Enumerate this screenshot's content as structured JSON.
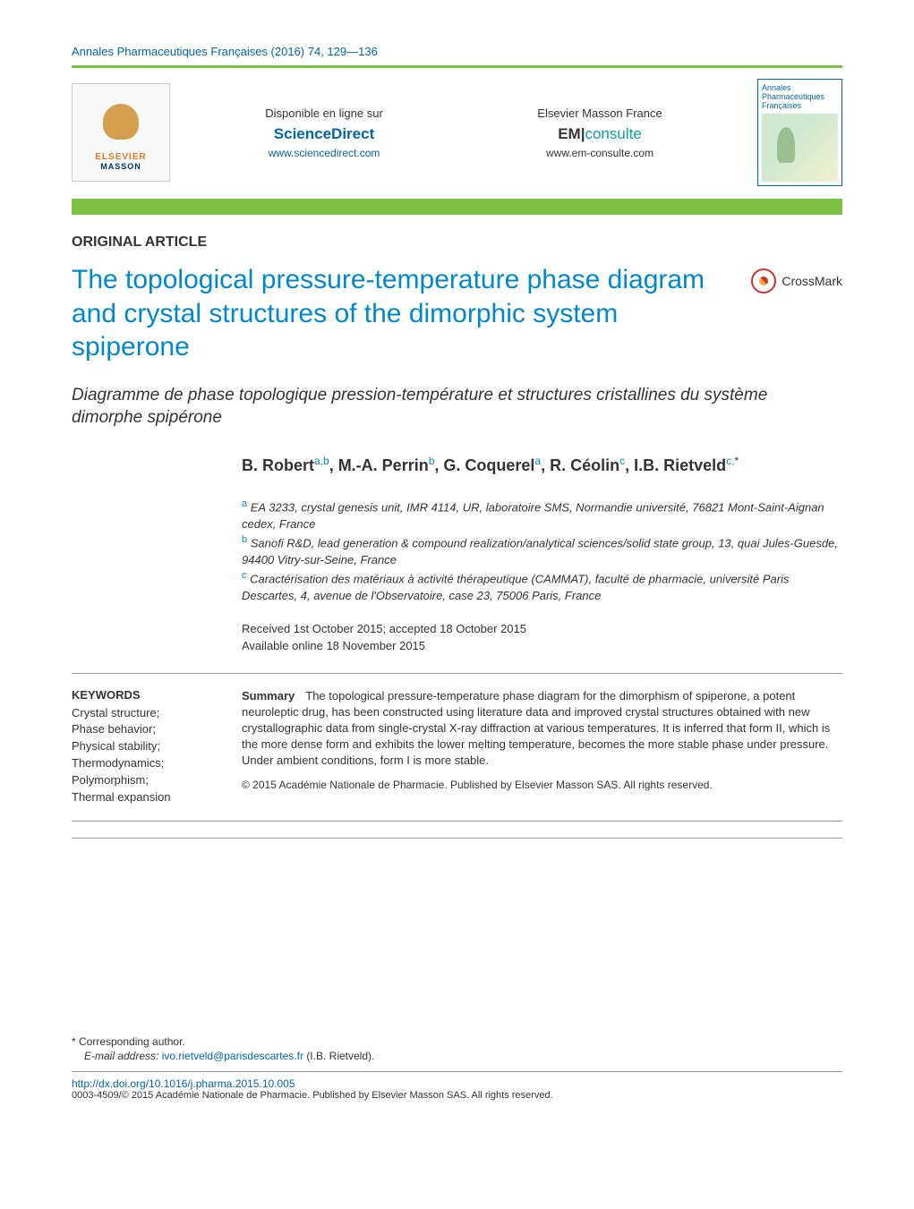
{
  "journal_ref": "Annales Pharmaceutiques Françaises (2016) 74, 129—136",
  "header": {
    "elsevier_logo_main": "ELSEVIER",
    "elsevier_logo_sub": "MASSON",
    "left_block": {
      "label": "Disponible en ligne sur",
      "brand": "ScienceDirect",
      "url": "www.sciencedirect.com"
    },
    "right_block": {
      "label": "Elsevier Masson France",
      "brand_pre": "EM",
      "brand_post": "consulte",
      "url": "www.em-consulte.com"
    },
    "cover": {
      "line1": "Annales",
      "line2": "Pharmaceutiques",
      "line3": "Françaises"
    }
  },
  "article_type": "ORIGINAL ARTICLE",
  "title": "The topological pressure-temperature phase diagram and crystal structures of the dimorphic system spiperone",
  "crossmark_label": "CrossMark",
  "subtitle": "Diagramme de phase topologique pression-température et structures cristallines du système dimorphe spipérone",
  "authors_html": "B. Robert<sup>a,b</sup>, M.-A. Perrin<sup>b</sup>, G. Coquerel<sup>a</sup>, R. Céolin<sup>c</sup>, I.B. Rietveld<sup>c,</sup><sup class='star'>*</sup>",
  "affiliations": [
    {
      "tag": "a",
      "text": "EA 3233, crystal genesis unit, IMR 4114, UR, laboratoire SMS, Normandie université, 76821 Mont-Saint-Aignan cedex, France"
    },
    {
      "tag": "b",
      "text": "Sanofi R&D, lead generation & compound realization/analytical sciences/solid state group, 13, quai Jules-Guesde, 94400 Vitry-sur-Seine, France"
    },
    {
      "tag": "c",
      "text": "Caractérisation des matériaux à activité thérapeutique (CAMMAT), faculté de pharmacie, université Paris Descartes, 4, avenue de l'Observatoire, case 23, 75006 Paris, France"
    }
  ],
  "dates": {
    "received_accepted": "Received 1st October 2015; accepted 18 October 2015",
    "online": "Available online 18 November 2015"
  },
  "keywords": {
    "heading": "KEYWORDS",
    "items": [
      "Crystal structure;",
      "Phase behavior;",
      "Physical stability;",
      "Thermodynamics;",
      "Polymorphism;",
      "Thermal expansion"
    ]
  },
  "summary": {
    "heading": "Summary",
    "text": "The topological pressure-temperature phase diagram for the dimorphism of spiperone, a potent neuroleptic drug, has been constructed using literature data and improved crystal structures obtained with new crystallographic data from single-crystal X-ray diffraction at various temperatures. It is inferred that form II, which is the more dense form and exhibits the lower melting temperature, becomes the more stable phase under pressure. Under ambient conditions, form I is more stable.",
    "copyright": "© 2015 Académie Nationale de Pharmacie. Published by Elsevier Masson SAS. All rights reserved."
  },
  "footer": {
    "corresponding": "* Corresponding author.",
    "email_label": "E-mail address:",
    "email": "ivo.rietveld@parisdescartes.fr",
    "email_name": "(I.B. Rietveld).",
    "doi": "http://dx.doi.org/10.1016/j.pharma.2015.10.005",
    "issn": "0003-4509/© 2015 Académie Nationale de Pharmacie. Published by Elsevier Masson SAS. All rights reserved."
  },
  "colors": {
    "green_bar": "#7bc143",
    "link_blue": "#0066aa",
    "title_blue": "#0088cc",
    "text": "#333333",
    "rule": "#999999",
    "elsevier_orange": "#e87722",
    "elsevier_navy": "#003366",
    "crossmark_red": "#cc3333",
    "teal": "#0aa0a0"
  }
}
